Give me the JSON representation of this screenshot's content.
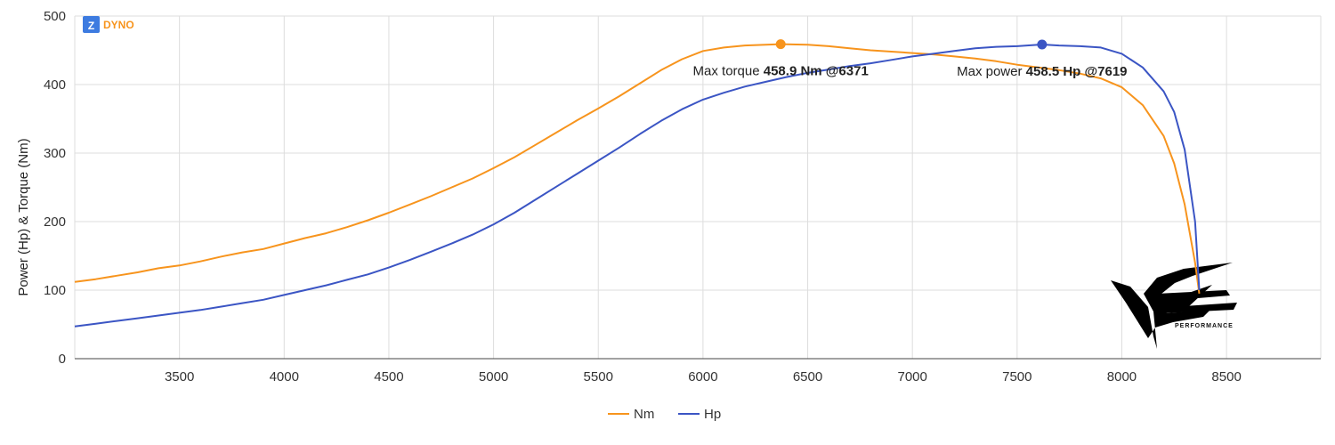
{
  "logo": {
    "letter": "Z",
    "text": "DYNO",
    "color": "#f7941d",
    "badge_color": "#3d7be0"
  },
  "watermark": {
    "text": "PERFORMANCE"
  },
  "chart_data": {
    "type": "line",
    "ylabel": "Power (Hp) & Torque (Nm)",
    "xlabel": "",
    "xlim": [
      3000,
      8950
    ],
    "ylim": [
      0,
      500
    ],
    "x_ticks": [
      3500,
      4000,
      4500,
      5000,
      5500,
      6000,
      6500,
      7000,
      7500,
      8000,
      8500
    ],
    "y_ticks": [
      0,
      100,
      200,
      300,
      400,
      500
    ],
    "grid": true,
    "legend_position": "bottom",
    "series": [
      {
        "name": "Nm",
        "color": "#f7941d",
        "points": [
          [
            3000,
            112
          ],
          [
            3100,
            116
          ],
          [
            3200,
            121
          ],
          [
            3300,
            126
          ],
          [
            3400,
            132
          ],
          [
            3500,
            136
          ],
          [
            3600,
            142
          ],
          [
            3700,
            149
          ],
          [
            3800,
            155
          ],
          [
            3900,
            160
          ],
          [
            4000,
            168
          ],
          [
            4100,
            176
          ],
          [
            4200,
            183
          ],
          [
            4300,
            192
          ],
          [
            4400,
            202
          ],
          [
            4500,
            213
          ],
          [
            4600,
            225
          ],
          [
            4700,
            237
          ],
          [
            4800,
            250
          ],
          [
            4900,
            263
          ],
          [
            5000,
            278
          ],
          [
            5100,
            294
          ],
          [
            5200,
            312
          ],
          [
            5300,
            330
          ],
          [
            5400,
            348
          ],
          [
            5500,
            365
          ],
          [
            5600,
            383
          ],
          [
            5700,
            402
          ],
          [
            5800,
            421
          ],
          [
            5900,
            437
          ],
          [
            6000,
            449
          ],
          [
            6100,
            454
          ],
          [
            6200,
            457
          ],
          [
            6371,
            458.9
          ],
          [
            6500,
            458
          ],
          [
            6600,
            456
          ],
          [
            6700,
            453
          ],
          [
            6800,
            450
          ],
          [
            6900,
            448
          ],
          [
            7000,
            446
          ],
          [
            7100,
            444
          ],
          [
            7200,
            441
          ],
          [
            7300,
            438
          ],
          [
            7400,
            434
          ],
          [
            7500,
            429
          ],
          [
            7600,
            425
          ],
          [
            7700,
            421
          ],
          [
            7800,
            416
          ],
          [
            7900,
            409
          ],
          [
            8000,
            396
          ],
          [
            8100,
            370
          ],
          [
            8200,
            325
          ],
          [
            8250,
            285
          ],
          [
            8300,
            225
          ],
          [
            8350,
            140
          ],
          [
            8370,
            95
          ]
        ]
      },
      {
        "name": "Hp",
        "color": "#3b55c4",
        "points": [
          [
            3000,
            47
          ],
          [
            3100,
            51
          ],
          [
            3200,
            55
          ],
          [
            3300,
            59
          ],
          [
            3400,
            63
          ],
          [
            3500,
            67
          ],
          [
            3600,
            71
          ],
          [
            3700,
            76
          ],
          [
            3800,
            81
          ],
          [
            3900,
            86
          ],
          [
            4000,
            93
          ],
          [
            4100,
            100
          ],
          [
            4200,
            107
          ],
          [
            4300,
            115
          ],
          [
            4400,
            123
          ],
          [
            4500,
            133
          ],
          [
            4600,
            144
          ],
          [
            4700,
            156
          ],
          [
            4800,
            168
          ],
          [
            4900,
            181
          ],
          [
            5000,
            196
          ],
          [
            5100,
            213
          ],
          [
            5200,
            232
          ],
          [
            5300,
            251
          ],
          [
            5400,
            270
          ],
          [
            5500,
            289
          ],
          [
            5600,
            308
          ],
          [
            5700,
            328
          ],
          [
            5800,
            347
          ],
          [
            5900,
            364
          ],
          [
            6000,
            378
          ],
          [
            6100,
            388
          ],
          [
            6200,
            397
          ],
          [
            6300,
            404
          ],
          [
            6400,
            411
          ],
          [
            6500,
            417
          ],
          [
            6600,
            422
          ],
          [
            6700,
            427
          ],
          [
            6800,
            431
          ],
          [
            6900,
            436
          ],
          [
            7000,
            441
          ],
          [
            7100,
            445
          ],
          [
            7200,
            449
          ],
          [
            7300,
            453
          ],
          [
            7400,
            455
          ],
          [
            7500,
            456
          ],
          [
            7619,
            458.5
          ],
          [
            7700,
            457
          ],
          [
            7800,
            456
          ],
          [
            7900,
            454
          ],
          [
            8000,
            445
          ],
          [
            8100,
            425
          ],
          [
            8200,
            390
          ],
          [
            8250,
            360
          ],
          [
            8300,
            305
          ],
          [
            8350,
            200
          ],
          [
            8370,
            100
          ]
        ]
      }
    ],
    "annotations": [
      {
        "series": "Nm",
        "x": 6371,
        "y": 458.9,
        "label": "Max torque",
        "value": "458.9 Nm @6371"
      },
      {
        "series": "Hp",
        "x": 7619,
        "y": 458.5,
        "label": "Max power",
        "value": "458.5 Hp @7619"
      }
    ]
  }
}
